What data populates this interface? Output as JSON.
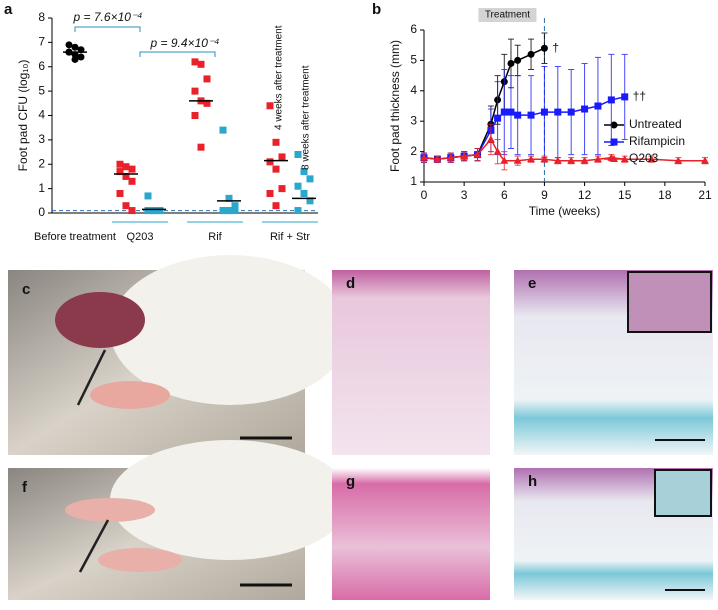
{
  "chart_data": [
    {
      "type": "dot",
      "panel": "a",
      "y_label": "Foot pad CFU (log₁₀)",
      "categories": [
        "Before treatment",
        "Q203",
        "Rif",
        "Rif + Str"
      ],
      "ylim": [
        0,
        8
      ],
      "yticks": [
        0,
        1,
        2,
        3,
        4,
        5,
        6,
        7,
        8
      ],
      "detection_limit": 0.1,
      "columns": [
        {
          "category": 0,
          "color": "#000000",
          "marker": "circle",
          "points": [
            6.9,
            6.8,
            6.7,
            6.6,
            6.5,
            6.4,
            6.6,
            6.3
          ],
          "mean": 6.6
        },
        {
          "category": 1,
          "color": "#e8212a",
          "marker": "square",
          "points": [
            2.0,
            1.9,
            1.8,
            1.7,
            1.5,
            1.3,
            0.8,
            0.3,
            0.1
          ],
          "mean": 1.6
        },
        {
          "category": 1,
          "color": "#2aa7cc",
          "marker": "square",
          "points": [
            0.7,
            0.1,
            0.1,
            0.1,
            0.1,
            0.1,
            0.1,
            0.1
          ],
          "mean": 0.15
        },
        {
          "category": 2,
          "color": "#e8212a",
          "marker": "square",
          "points": [
            6.2,
            6.1,
            5.5,
            5.0,
            4.6,
            4.5,
            4.0,
            2.7
          ],
          "mean": 4.6
        },
        {
          "category": 2,
          "color": "#2aa7cc",
          "marker": "square",
          "points": [
            3.4,
            0.6,
            0.3,
            0.1,
            0.1,
            0.1,
            0.1,
            0.1
          ],
          "mean": 0.5
        },
        {
          "category": 3,
          "color": "#e8212a",
          "marker": "square",
          "points": [
            4.4,
            2.9,
            2.3,
            2.1,
            1.8,
            1.0,
            0.8,
            0.3
          ],
          "mean": 2.15
        },
        {
          "category": 3,
          "color": "#2aa7cc",
          "marker": "square",
          "points": [
            2.4,
            1.7,
            1.4,
            1.1,
            0.8,
            0.5,
            0.1
          ],
          "mean": 0.6
        }
      ],
      "p_values": [
        "p = 7.6×10⁻⁴",
        "p = 9.4×10⁻⁴"
      ],
      "column_notes": [
        "4 weeks after treatment",
        "8 weeks after treatment"
      ]
    },
    {
      "type": "line",
      "panel": "b",
      "x_label": "Time (weeks)",
      "y_label": "Foot pad thickness (mm)",
      "xlim": [
        0,
        21
      ],
      "xticks": [
        0,
        3,
        6,
        9,
        12,
        15,
        18,
        21
      ],
      "ylim": [
        1,
        6
      ],
      "yticks": [
        1,
        2,
        3,
        4,
        5,
        6
      ],
      "treatment_label": "Treatment",
      "treatment_end": 9,
      "legend": "right",
      "series": [
        {
          "name": "Untreated",
          "color": "#000000",
          "marker": "circle",
          "end_note": "†",
          "x": [
            0,
            1,
            2,
            3,
            4,
            5,
            5.5,
            6,
            6.5,
            7,
            8,
            9
          ],
          "values": [
            1.8,
            1.75,
            1.8,
            1.85,
            1.9,
            2.9,
            3.7,
            4.3,
            4.9,
            5.0,
            5.2,
            5.4
          ],
          "errors": [
            0.15,
            0.1,
            0.15,
            0.15,
            0.2,
            0.6,
            0.8,
            0.9,
            0.8,
            0.5,
            0.5,
            0.5
          ]
        },
        {
          "name": "Rifampicin",
          "color": "#1a1aff",
          "marker": "square",
          "end_note": "††",
          "x": [
            0,
            1,
            2,
            3,
            4,
            5,
            5.5,
            6,
            6.5,
            7,
            8,
            9,
            10,
            11,
            12,
            13,
            14,
            15
          ],
          "values": [
            1.8,
            1.75,
            1.8,
            1.85,
            1.9,
            2.7,
            3.1,
            3.3,
            3.3,
            3.2,
            3.2,
            3.3,
            3.3,
            3.3,
            3.4,
            3.5,
            3.7,
            3.8
          ],
          "errors": [
            0.15,
            0.1,
            0.15,
            0.15,
            0.2,
            0.7,
            1.2,
            1.4,
            1.2,
            1.3,
            1.3,
            1.5,
            1.5,
            1.4,
            1.5,
            1.6,
            1.5,
            1.4
          ]
        },
        {
          "name": "Q203",
          "color": "#e8212a",
          "marker": "triangle",
          "end_note": null,
          "x": [
            0,
            1,
            2,
            3,
            4,
            5,
            5.5,
            6,
            7,
            8,
            9,
            10,
            11,
            12,
            13,
            14,
            15,
            17,
            19,
            21
          ],
          "values": [
            1.8,
            1.75,
            1.8,
            1.85,
            1.9,
            2.4,
            2.0,
            1.7,
            1.7,
            1.75,
            1.75,
            1.7,
            1.7,
            1.7,
            1.75,
            1.8,
            1.75,
            1.75,
            1.7,
            1.7
          ],
          "errors": [
            0.15,
            0.1,
            0.15,
            0.15,
            0.2,
            0.5,
            0.4,
            0.3,
            0.15,
            0.1,
            0.1,
            0.1,
            0.1,
            0.1,
            0.1,
            0.1,
            0.1,
            0.1,
            0.1,
            0.1
          ]
        }
      ]
    }
  ],
  "image_panels": {
    "labels": [
      "c",
      "d",
      "e",
      "f",
      "g",
      "h"
    ]
  }
}
